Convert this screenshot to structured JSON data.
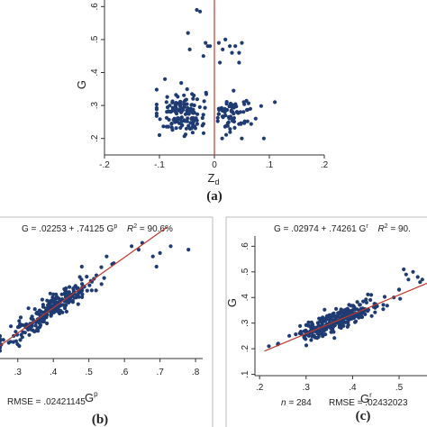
{
  "colors": {
    "point": "#1f3b73",
    "fit_line": "#c0392b",
    "zero_line": "#c0392b",
    "axis": "#333333",
    "frame": "#bbbbbb"
  },
  "chart_data": [
    {
      "id": "a",
      "type": "scatter",
      "caption": "(a)",
      "xlabel": "Z",
      "xlabel_sub": "d",
      "ylabel": "G",
      "xlim": [
        -0.2,
        0.2
      ],
      "ylim": [
        0.15,
        0.62
      ],
      "xticks": [
        -0.2,
        -0.1,
        0,
        0.1,
        0.2
      ],
      "xtick_labels": [
        "-.2",
        "-.1",
        "0",
        ".1",
        ".2"
      ],
      "yticks": [
        0.2,
        0.3,
        0.4,
        0.5,
        0.6
      ],
      "ytick_labels": [
        ".2",
        ".3",
        ".4",
        ".5",
        ".6"
      ],
      "reference_line_x": 0,
      "grid": false,
      "points_summary": "two clusters: Zd in [-0.11,-0.01] and [0.005,0.11], G mostly 0.2-0.33 with upper group near 0.45-0.5; two points near (-0.03,0.59)"
    },
    {
      "id": "b",
      "type": "scatter",
      "caption": "(b)",
      "equation": "G = .02253 + .74125 G",
      "equation_sup": "p",
      "r2_label": "R",
      "r2_value": " = 90.6%",
      "rmse": "RMSE = .02421145",
      "xlabel": "G",
      "xlabel_sup": "p",
      "xlim": [
        0.25,
        0.82
      ],
      "ylim": [
        0.17,
        0.53
      ],
      "xticks": [
        0.3,
        0.4,
        0.5,
        0.6,
        0.7,
        0.8
      ],
      "xtick_labels": [
        ".3",
        ".4",
        ".5",
        ".6",
        ".7",
        ".8"
      ],
      "fit": {
        "intercept": 0.02253,
        "slope": 0.74125
      },
      "grid": false
    },
    {
      "id": "c",
      "type": "scatter",
      "caption": "(c)",
      "equation": "G = .02974 + .74261 G",
      "equation_sup": "r",
      "r2_label": "R",
      "r2_value": " = 90.",
      "n_label": "n",
      "n_value": " = 284",
      "rmse": "RMSE = .02432023",
      "xlabel": "G",
      "xlabel_sup": "r",
      "ylabel": "G",
      "xlim": [
        0.19,
        0.56
      ],
      "ylim": [
        0.095,
        0.64
      ],
      "xticks": [
        0.2,
        0.3,
        0.4,
        0.5
      ],
      "xtick_labels": [
        ".2",
        ".3",
        ".4",
        ".5"
      ],
      "yticks": [
        0.1,
        0.2,
        0.3,
        0.4,
        0.5,
        0.6
      ],
      "ytick_labels": [
        ".1",
        ".2",
        ".3",
        ".4",
        ".5",
        ".6"
      ],
      "fit": {
        "intercept": 0.02974,
        "slope": 0.74261
      },
      "grid": false
    }
  ]
}
